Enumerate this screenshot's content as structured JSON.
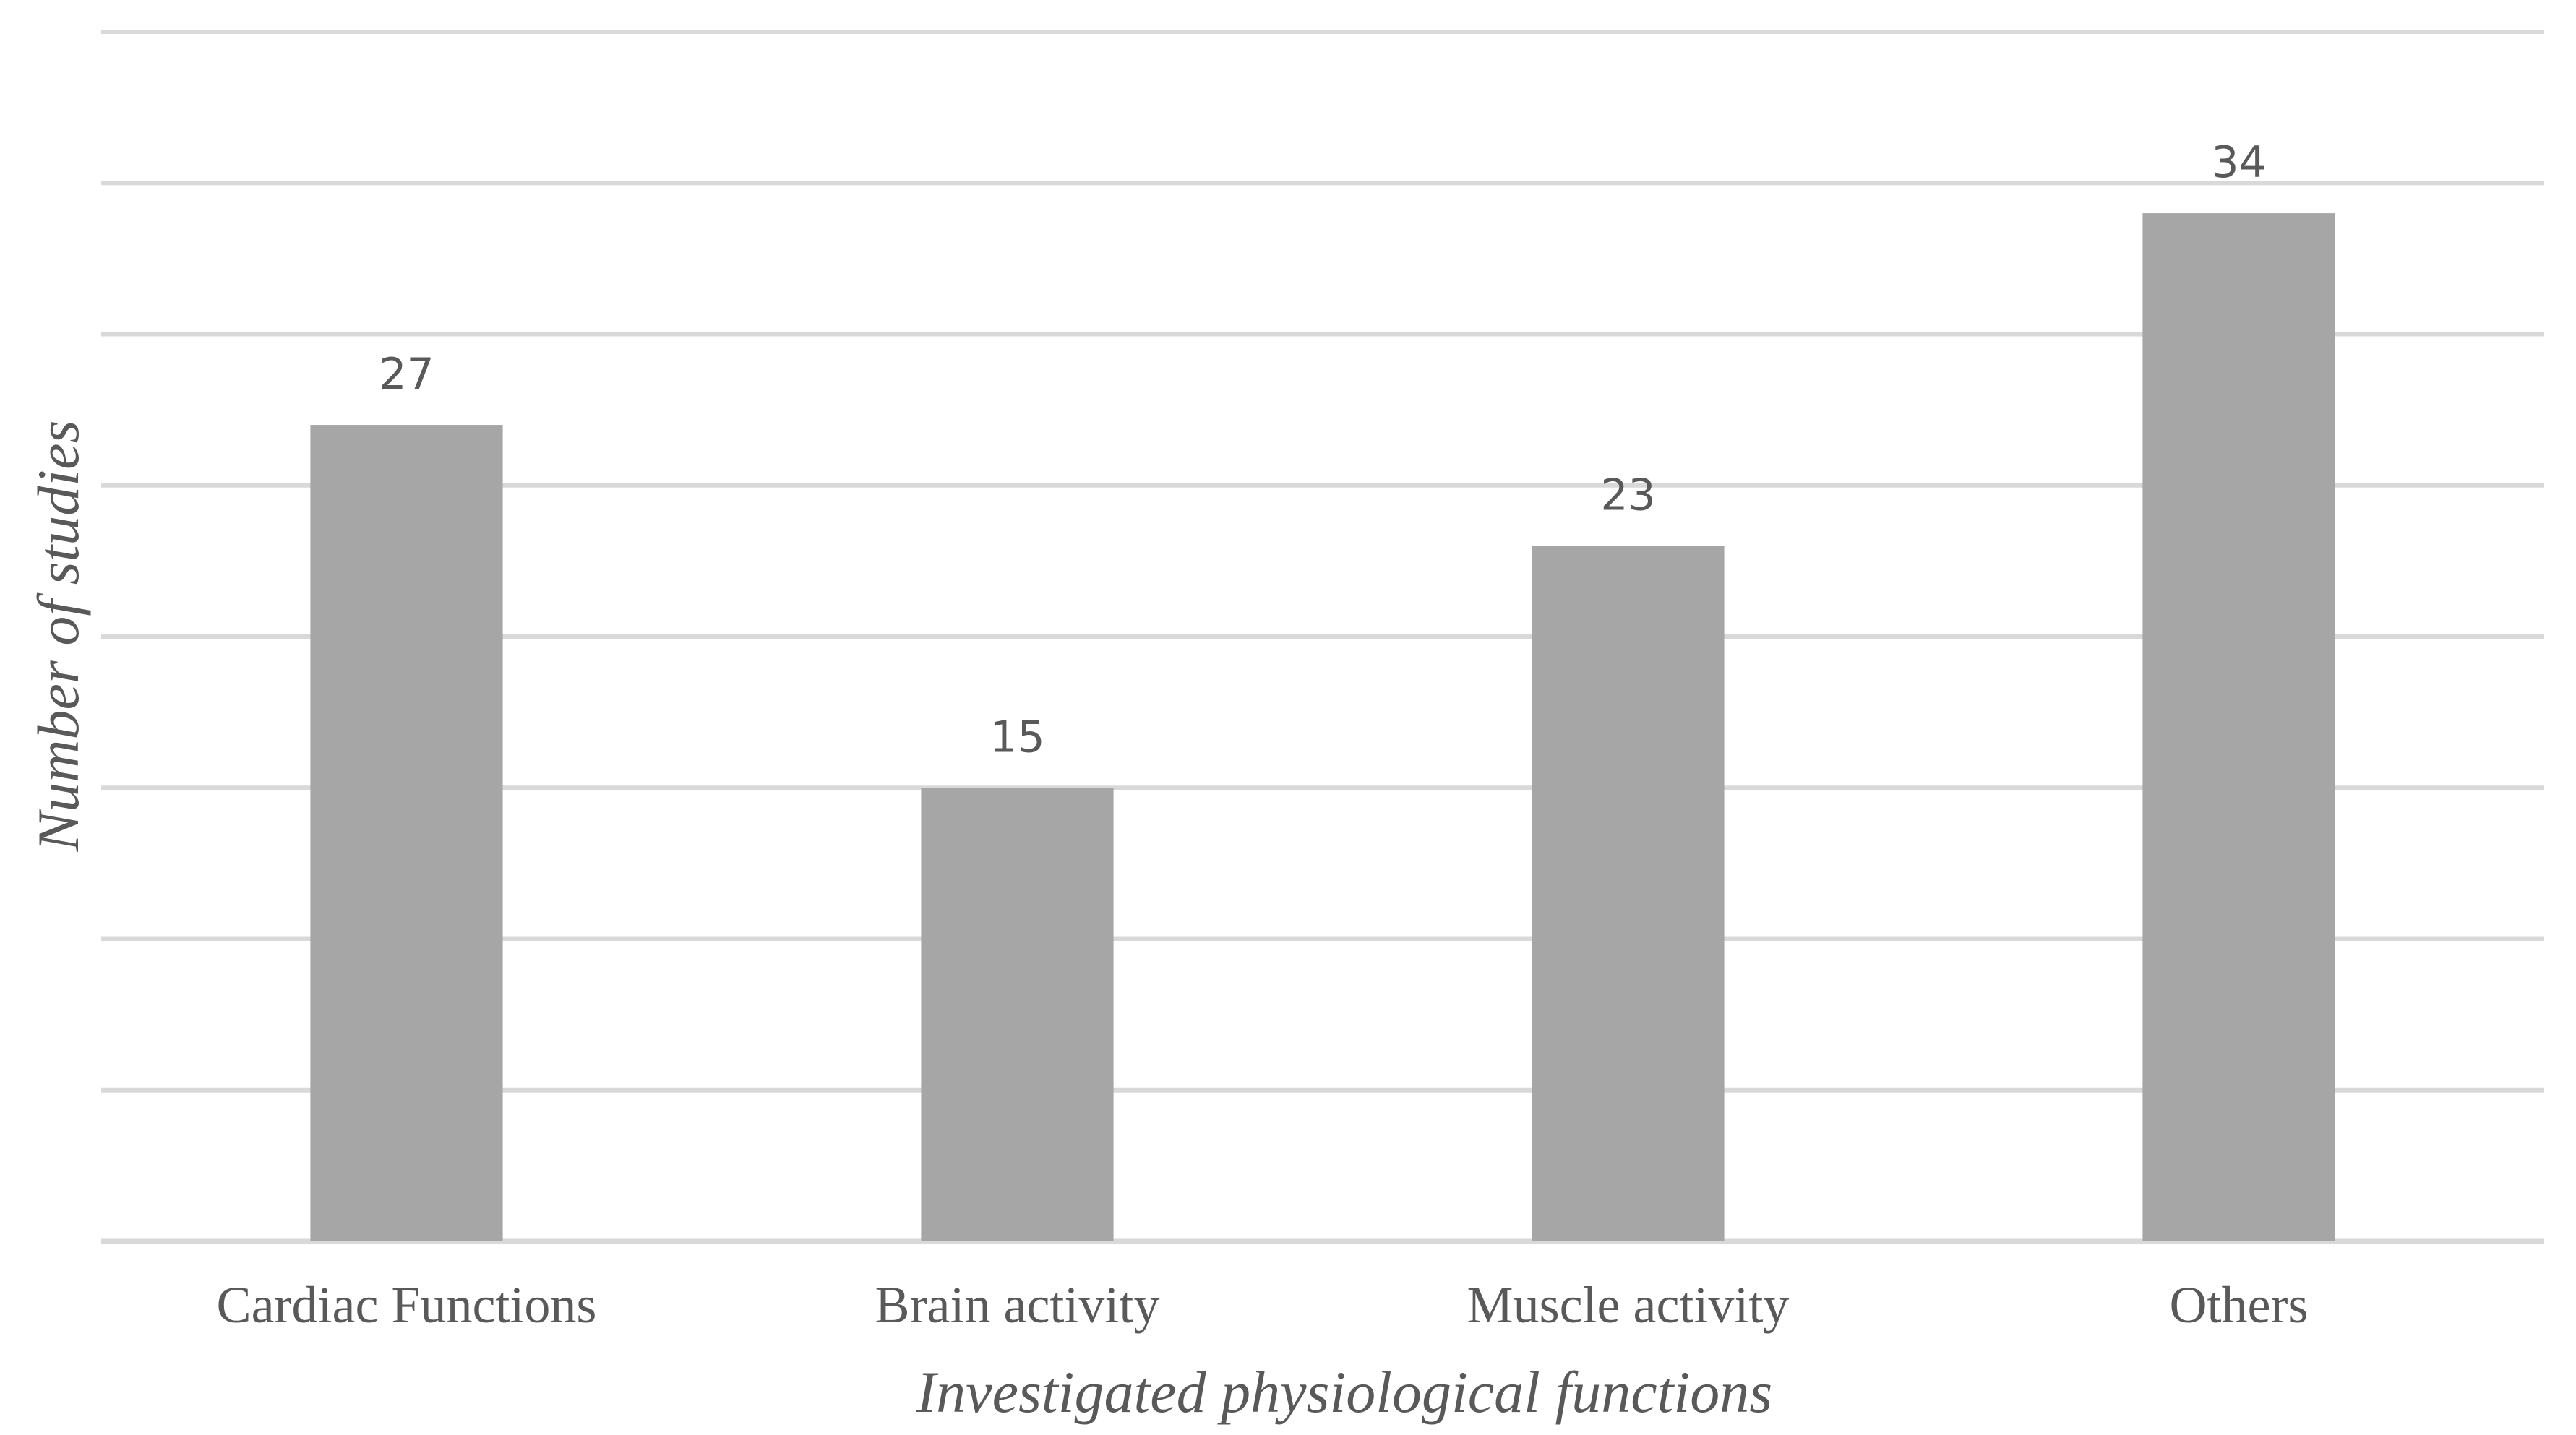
{
  "chart_data": {
    "type": "bar",
    "title": "",
    "xlabel": "Investigated physiological functions",
    "ylabel": "Number of studies",
    "categories": [
      "Cardiac Functions",
      "Brain activity",
      "Muscle activity",
      "Others"
    ],
    "values": [
      27,
      15,
      23,
      34
    ],
    "data_labels": [
      "27",
      "15",
      "23",
      "34"
    ],
    "ylim": [
      0,
      40
    ],
    "gridline_step": 5,
    "grid": true,
    "y_tick_labels_visible": false,
    "legend": "none",
    "colors": {
      "bar": "#a6a6a6",
      "grid": "#d9d9d9",
      "text": "#595959"
    }
  }
}
